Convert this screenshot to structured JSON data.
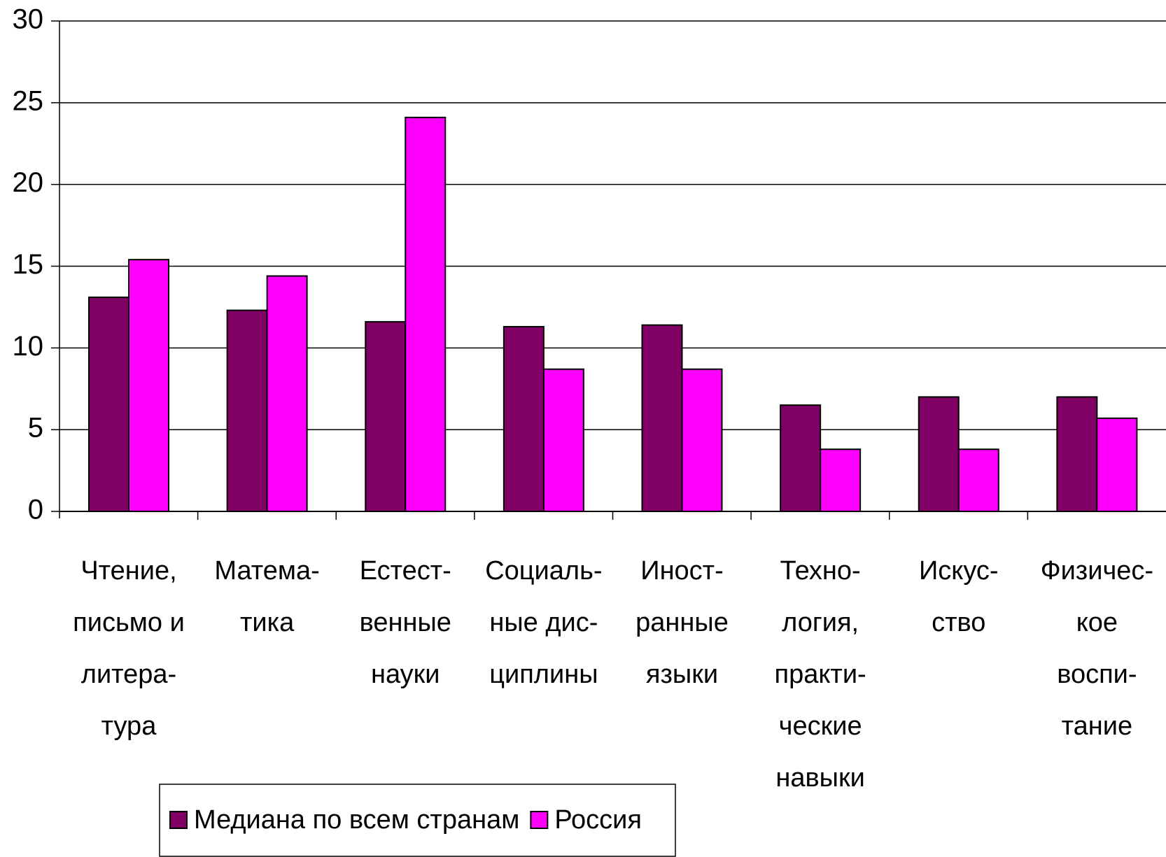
{
  "chart_data": {
    "type": "bar",
    "categories": [
      [
        "Чтение,",
        "письмо и",
        "литера-",
        "тура"
      ],
      [
        "Матема-",
        "тика"
      ],
      [
        "Естест-",
        "венные",
        "науки"
      ],
      [
        "Социаль-",
        "ные дис-",
        "циплины"
      ],
      [
        "Иност-",
        "ранные",
        "языки"
      ],
      [
        "Техно-",
        "логия,",
        "практи-",
        "ческие",
        "навыки"
      ],
      [
        "Искус-",
        "ство"
      ],
      [
        "Физичес-",
        "кое",
        "воспи-",
        "тание"
      ]
    ],
    "series": [
      {
        "name": "Медиана по всем странам",
        "color": "#800066",
        "values": [
          13.1,
          12.3,
          11.6,
          11.3,
          11.4,
          6.5,
          7.0,
          7.0
        ]
      },
      {
        "name": "Россия",
        "color": "#ff00ff",
        "values": [
          15.4,
          14.4,
          24.1,
          8.7,
          8.7,
          3.8,
          3.8,
          5.7
        ]
      }
    ],
    "ylim": [
      0,
      30
    ],
    "yticks": [
      0,
      5,
      10,
      15,
      20,
      25,
      30
    ],
    "grid": true
  }
}
